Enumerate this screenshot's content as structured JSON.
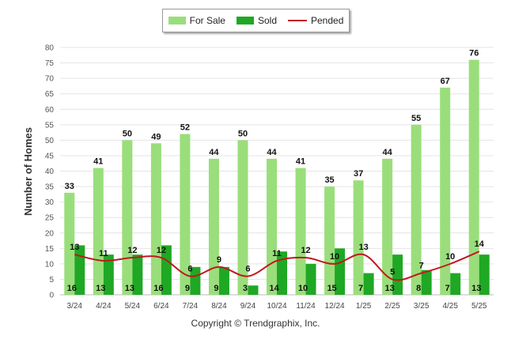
{
  "chart_data": {
    "type": "bar",
    "categories": [
      "3/24",
      "4/24",
      "5/24",
      "6/24",
      "7/24",
      "8/24",
      "9/24",
      "10/24",
      "11/24",
      "12/24",
      "1/25",
      "2/25",
      "3/25",
      "4/25",
      "5/25"
    ],
    "ylabel": "Number of Homes",
    "ylim": [
      0,
      80
    ],
    "yticks": [
      0,
      5,
      10,
      15,
      20,
      25,
      30,
      35,
      40,
      45,
      50,
      55,
      60,
      65,
      70,
      75,
      80
    ],
    "grid": true,
    "legend_placement": "top-center",
    "series": [
      {
        "name": "For Sale",
        "kind": "bar",
        "color": "#9ADE7B",
        "values": [
          33,
          41,
          50,
          49,
          52,
          44,
          50,
          44,
          41,
          35,
          37,
          44,
          55,
          67,
          76
        ]
      },
      {
        "name": "Sold",
        "kind": "bar",
        "color": "#1FA824",
        "values": [
          16,
          13,
          13,
          16,
          9,
          9,
          3,
          14,
          10,
          15,
          7,
          13,
          8,
          7,
          13
        ]
      },
      {
        "name": "Pended",
        "kind": "line",
        "color": "#C0191C",
        "values": [
          13,
          11,
          12,
          12,
          6,
          9,
          6,
          11,
          12,
          10,
          13,
          5,
          7,
          10,
          14
        ]
      }
    ]
  },
  "copyright": "Copyright © Trendgraphix, Inc."
}
